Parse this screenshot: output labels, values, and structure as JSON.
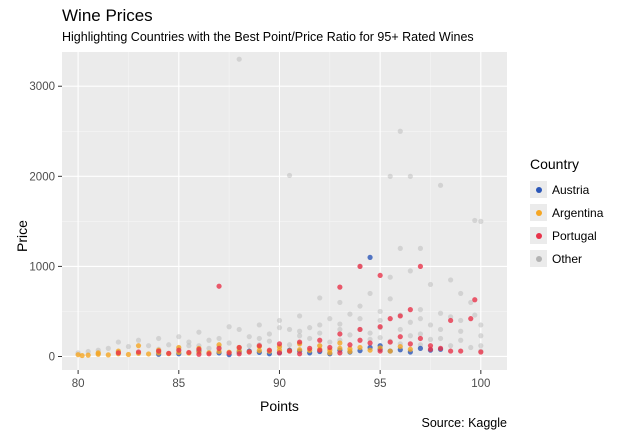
{
  "chart_data": {
    "type": "scatter",
    "title": "Wine Prices",
    "subtitle": "Highlighting Countries with the Best Point/Price Ratio for 95+ Rated Wines",
    "caption": "Source: Kaggle",
    "xlabel": "Points",
    "ylabel": "Price",
    "xlim": [
      79.2,
      101.3
    ],
    "ylim": [
      -150,
      3380
    ],
    "x_ticks": [
      80,
      85,
      90,
      95,
      100
    ],
    "y_ticks": [
      0,
      1000,
      2000,
      3000
    ],
    "grid": true,
    "legend_title": "Country",
    "legend_position": "right",
    "series": [
      {
        "name": "Other",
        "color": "#b3b3b3",
        "points": [
          [
            88,
            3300
          ],
          [
            96,
            2500
          ],
          [
            90.5,
            2010
          ],
          [
            95.5,
            2000
          ],
          [
            96.5,
            2000
          ],
          [
            98,
            1900
          ],
          [
            99.7,
            1510
          ],
          [
            100,
            1500
          ],
          [
            94,
            1000
          ],
          [
            96,
            1200
          ],
          [
            97,
            1200
          ],
          [
            96.5,
            950
          ],
          [
            95.5,
            880
          ],
          [
            98.5,
            850
          ],
          [
            97.5,
            800
          ],
          [
            99,
            700
          ],
          [
            92,
            650
          ],
          [
            93,
            600
          ],
          [
            94,
            560
          ],
          [
            95,
            500
          ],
          [
            96,
            460
          ],
          [
            97,
            520
          ],
          [
            98.5,
            440
          ],
          [
            99.5,
            600
          ],
          [
            100,
            350
          ],
          [
            94.5,
            700
          ],
          [
            95.5,
            640
          ],
          [
            93.5,
            470
          ],
          [
            91,
            450
          ],
          [
            92.5,
            420
          ],
          [
            90,
            400
          ],
          [
            89,
            350
          ],
          [
            88,
            300
          ],
          [
            87.5,
            330
          ],
          [
            86,
            270
          ],
          [
            85,
            220
          ],
          [
            84,
            200
          ],
          [
            83,
            180
          ],
          [
            82,
            160
          ],
          [
            90.5,
            300
          ],
          [
            91.5,
            320
          ],
          [
            93,
            360
          ],
          [
            96.5,
            380
          ],
          [
            97.5,
            350
          ],
          [
            98,
            300
          ],
          [
            99,
            280
          ],
          [
            100,
            230
          ],
          [
            95,
            320
          ],
          [
            94,
            300
          ],
          [
            92,
            260
          ],
          [
            91,
            230
          ],
          [
            89.5,
            250
          ],
          [
            88.5,
            220
          ],
          [
            87,
            200
          ],
          [
            86.5,
            180
          ],
          [
            85.5,
            160
          ],
          [
            84.5,
            130
          ],
          [
            83.5,
            120
          ],
          [
            82.5,
            110
          ],
          [
            81.5,
            90
          ],
          [
            81,
            70
          ],
          [
            80.5,
            55
          ],
          [
            80,
            40
          ],
          [
            85,
            90
          ],
          [
            87,
            110
          ],
          [
            89,
            130
          ],
          [
            91,
            150
          ],
          [
            93,
            180
          ],
          [
            95,
            210
          ],
          [
            97,
            250
          ],
          [
            96,
            300
          ],
          [
            98,
            200
          ],
          [
            99,
            180
          ],
          [
            100,
            120
          ],
          [
            92,
            120
          ],
          [
            90,
            100
          ],
          [
            88,
            80
          ],
          [
            86,
            70
          ],
          [
            84,
            60
          ],
          [
            82,
            50
          ],
          [
            93.5,
            240
          ],
          [
            94.5,
            260
          ],
          [
            96.5,
            230
          ],
          [
            97.5,
            190
          ],
          [
            91.5,
            200
          ],
          [
            89.5,
            170
          ],
          [
            87.5,
            150
          ],
          [
            85.5,
            120
          ],
          [
            86.5,
            90
          ],
          [
            88.5,
            120
          ],
          [
            90.5,
            130
          ],
          [
            92.5,
            160
          ],
          [
            94.5,
            190
          ],
          [
            95.5,
            170
          ],
          [
            96,
            140
          ],
          [
            97,
            130
          ],
          [
            98.5,
            120
          ],
          [
            99.5,
            100
          ],
          [
            100,
            60
          ],
          [
            83,
            40
          ],
          [
            81,
            30
          ],
          [
            84,
            80
          ],
          [
            86,
            120
          ],
          [
            89,
            200
          ],
          [
            91,
            280
          ],
          [
            93,
            300
          ],
          [
            95,
            400
          ],
          [
            97,
            420
          ],
          [
            98,
            480
          ],
          [
            99,
            400
          ],
          [
            99.7,
            460
          ],
          [
            94,
            420
          ],
          [
            92,
            350
          ],
          [
            90,
            320
          ]
        ]
      },
      {
        "name": "Austria",
        "color": "#2a56b8",
        "points": [
          [
            94.5,
            1100
          ],
          [
            86,
            60
          ],
          [
            87,
            40
          ],
          [
            88,
            50
          ],
          [
            89,
            45
          ],
          [
            90,
            40
          ],
          [
            91,
            60
          ],
          [
            92,
            55
          ],
          [
            93,
            70
          ],
          [
            94,
            65
          ],
          [
            95,
            80
          ],
          [
            96,
            75
          ],
          [
            97,
            90
          ],
          [
            94.5,
            100
          ],
          [
            95.5,
            60
          ],
          [
            93.5,
            50
          ],
          [
            92.5,
            30
          ],
          [
            91.5,
            40
          ],
          [
            96.5,
            50
          ],
          [
            97.5,
            70
          ],
          [
            98,
            80
          ],
          [
            85,
            30
          ],
          [
            84,
            25
          ],
          [
            90.5,
            70
          ],
          [
            89.5,
            30
          ],
          [
            88.5,
            60
          ],
          [
            87.5,
            20
          ],
          [
            95,
            120
          ]
        ]
      },
      {
        "name": "Argentina",
        "color": "#f5a623",
        "points": [
          [
            80,
            20
          ],
          [
            80.5,
            15
          ],
          [
            81,
            25
          ],
          [
            81.5,
            18
          ],
          [
            82,
            30
          ],
          [
            82.5,
            22
          ],
          [
            83,
            35
          ],
          [
            83.5,
            28
          ],
          [
            84,
            40
          ],
          [
            84.5,
            32
          ],
          [
            85,
            45
          ],
          [
            85.5,
            38
          ],
          [
            86,
            50
          ],
          [
            86.5,
            42
          ],
          [
            87,
            55
          ],
          [
            87.5,
            48
          ],
          [
            88,
            60
          ],
          [
            88.5,
            52
          ],
          [
            89,
            65
          ],
          [
            89.5,
            58
          ],
          [
            90,
            70
          ],
          [
            90.5,
            62
          ],
          [
            91,
            75
          ],
          [
            91.5,
            68
          ],
          [
            92,
            80
          ],
          [
            92.5,
            72
          ],
          [
            93,
            90
          ],
          [
            93.5,
            85
          ],
          [
            94,
            100
          ],
          [
            95,
            95
          ],
          [
            96,
            110
          ],
          [
            83,
            120
          ],
          [
            85,
            100
          ],
          [
            87,
            130
          ],
          [
            89,
            110
          ],
          [
            91,
            140
          ],
          [
            93,
            150
          ],
          [
            92,
            120
          ],
          [
            90,
            110
          ],
          [
            88,
            100
          ],
          [
            86,
            90
          ],
          [
            84,
            70
          ],
          [
            82,
            60
          ],
          [
            81,
            40
          ],
          [
            80.2,
            10
          ],
          [
            94.5,
            70
          ],
          [
            95.5,
            60
          ],
          [
            96.5,
            80
          ],
          [
            93.5,
            55
          ],
          [
            92.5,
            40
          ]
        ]
      },
      {
        "name": "Portugal",
        "color": "#e8334a",
        "points": [
          [
            87,
            780
          ],
          [
            94,
            1000
          ],
          [
            95,
            900
          ],
          [
            97,
            1000
          ],
          [
            93,
            770
          ],
          [
            99.7,
            630
          ],
          [
            99.5,
            420
          ],
          [
            98.5,
            400
          ],
          [
            96,
            450
          ],
          [
            95.5,
            420
          ],
          [
            96.5,
            520
          ],
          [
            95,
            330
          ],
          [
            94,
            300
          ],
          [
            93,
            250
          ],
          [
            92,
            180
          ],
          [
            91,
            160
          ],
          [
            90,
            140
          ],
          [
            89,
            120
          ],
          [
            88,
            100
          ],
          [
            87,
            90
          ],
          [
            86,
            80
          ],
          [
            85,
            70
          ],
          [
            84,
            60
          ],
          [
            83,
            50
          ],
          [
            82,
            40
          ],
          [
            90.5,
            60
          ],
          [
            91.5,
            90
          ],
          [
            92.5,
            100
          ],
          [
            93.5,
            130
          ],
          [
            94.5,
            150
          ],
          [
            95.5,
            160
          ],
          [
            96.5,
            140
          ],
          [
            97.5,
            120
          ],
          [
            98,
            90
          ],
          [
            99,
            60
          ],
          [
            100,
            50
          ],
          [
            88.5,
            50
          ],
          [
            89.5,
            70
          ],
          [
            87.5,
            40
          ],
          [
            86.5,
            30
          ],
          [
            85.5,
            45
          ],
          [
            84.5,
            35
          ],
          [
            96,
            220
          ],
          [
            97,
            200
          ],
          [
            94,
            180
          ],
          [
            92,
            70
          ],
          [
            90,
            40
          ],
          [
            88,
            30
          ],
          [
            86,
            25
          ],
          [
            95,
            60
          ],
          [
            93,
            40
          ],
          [
            91,
            30
          ],
          [
            97.5,
            80
          ],
          [
            98.5,
            60
          ]
        ]
      }
    ],
    "legend_order": [
      "Austria",
      "Argentina",
      "Portugal",
      "Other"
    ]
  }
}
